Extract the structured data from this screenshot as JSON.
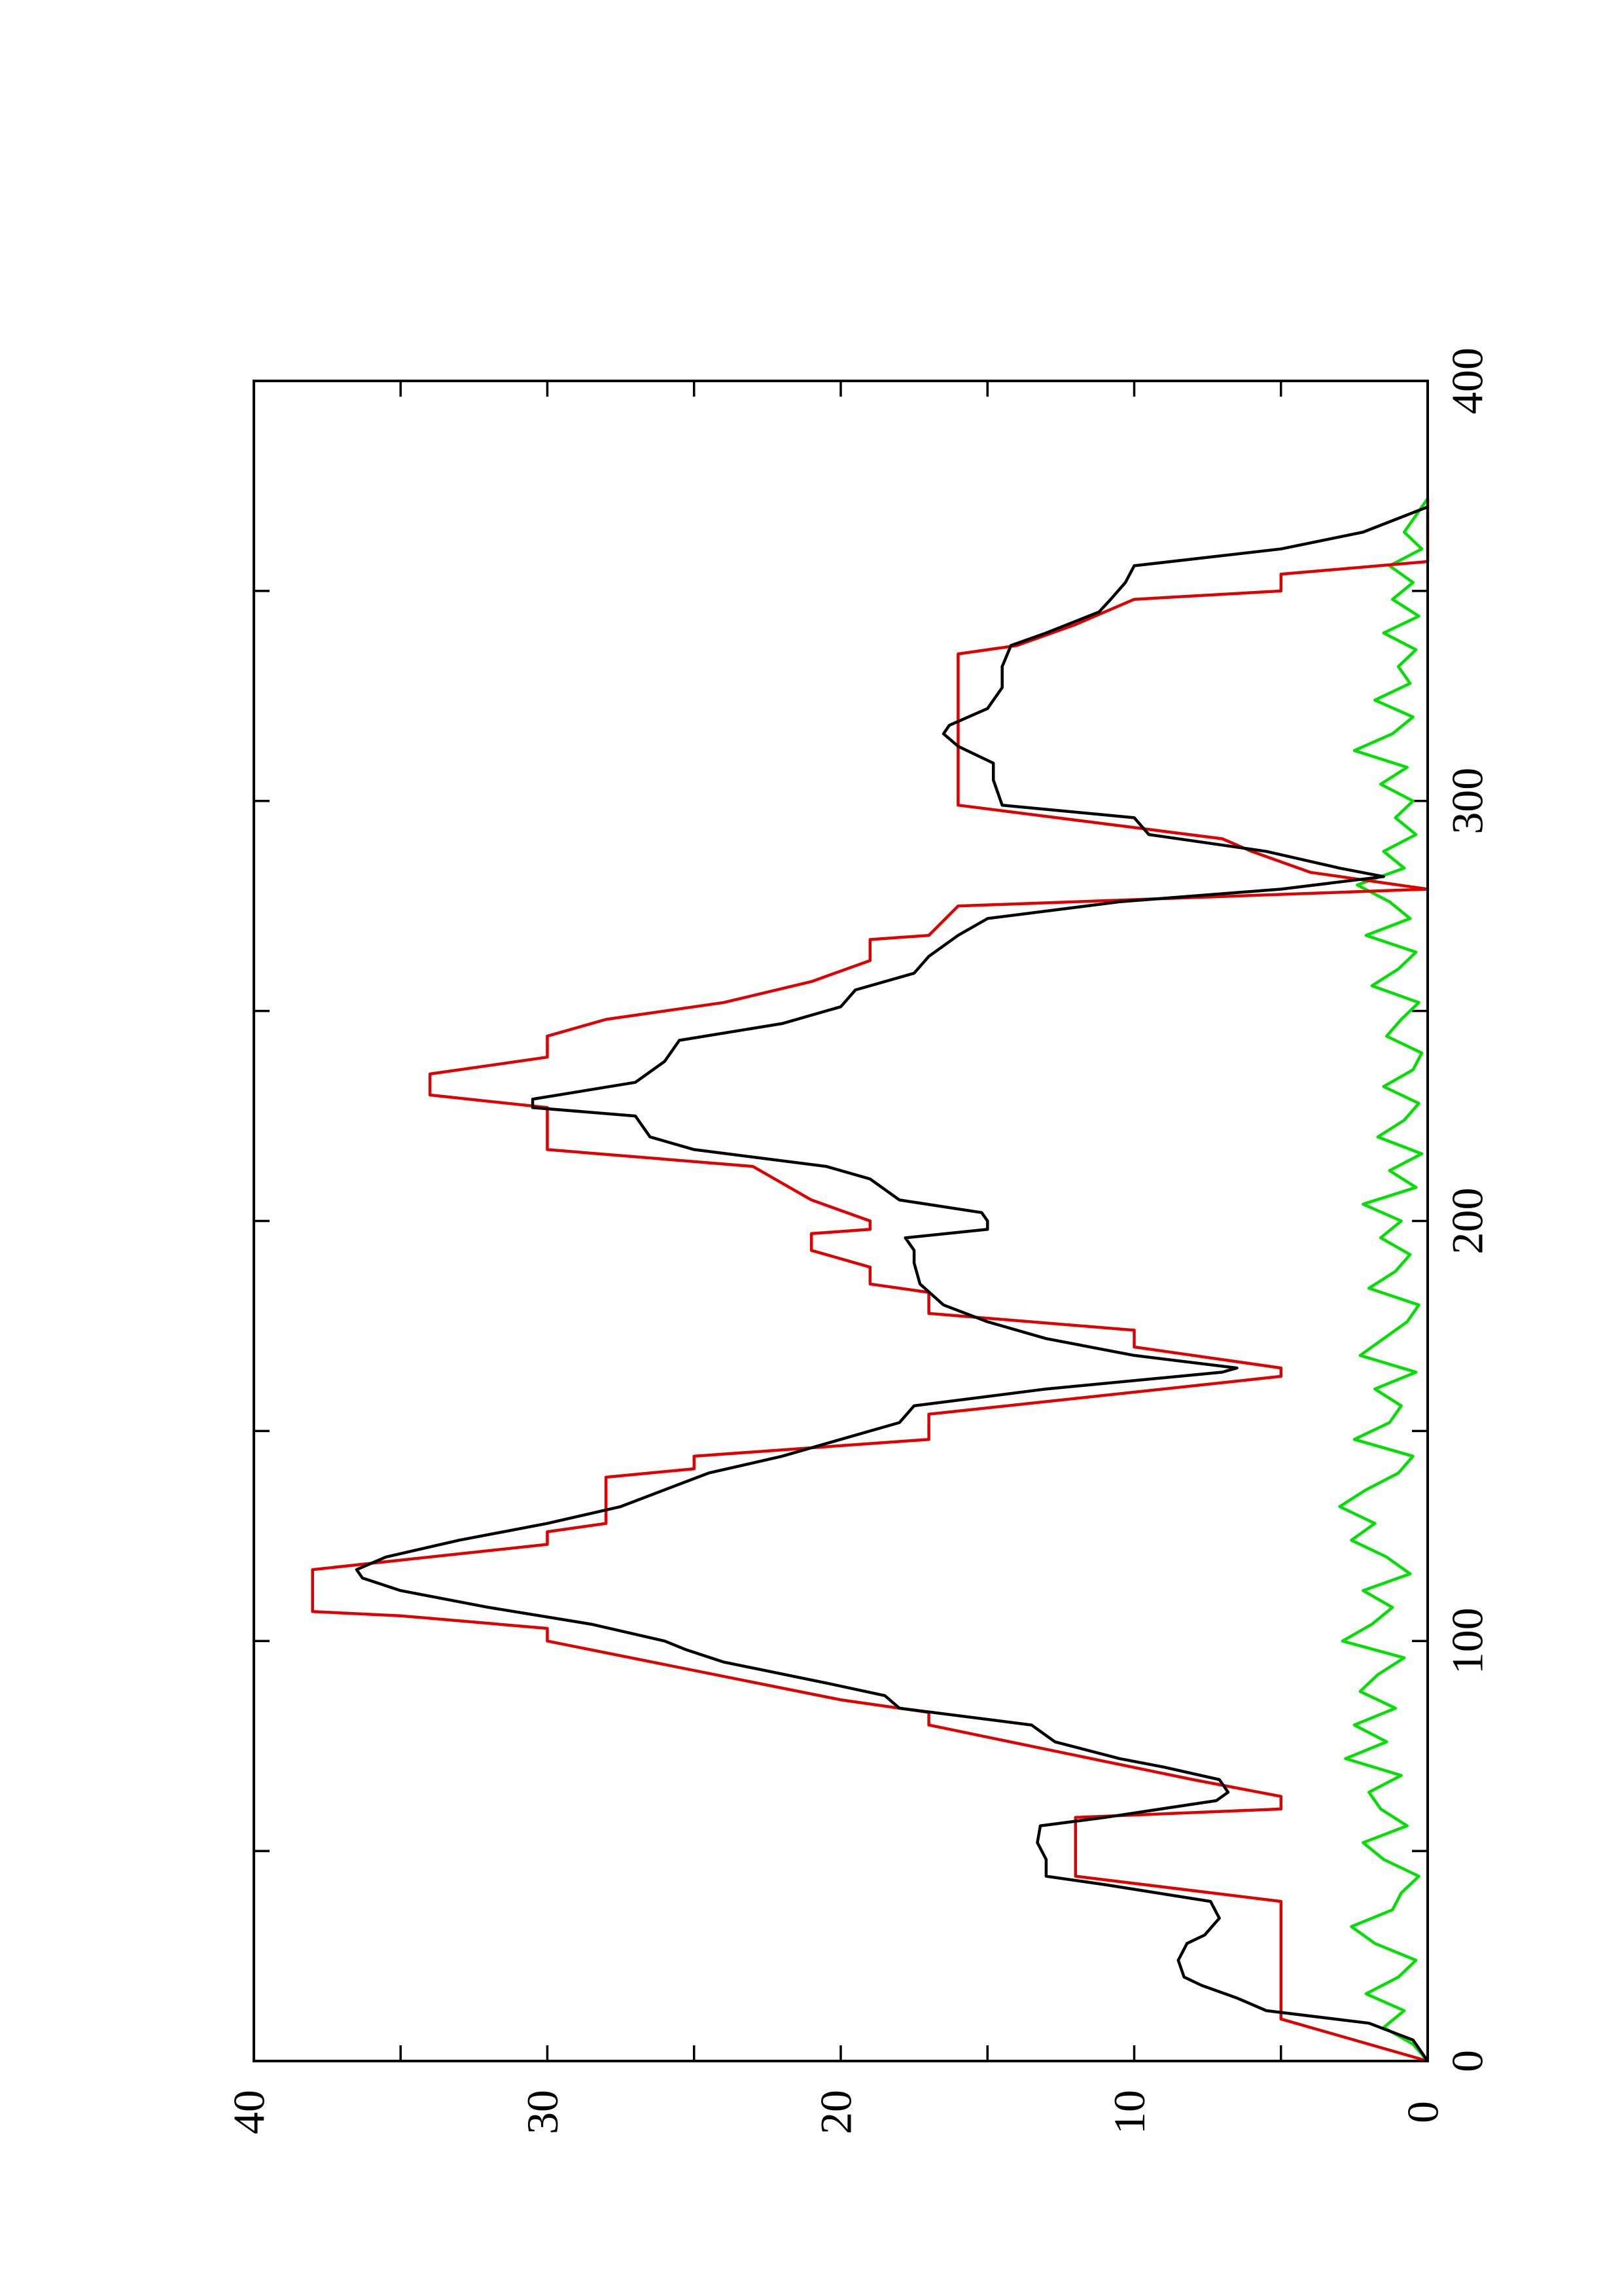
{
  "chart_data": {
    "type": "line",
    "xlim": [
      0,
      400
    ],
    "ylim": [
      0,
      40
    ],
    "xticks": [
      0,
      100,
      200,
      300,
      400
    ],
    "yticks": [
      0,
      10,
      20,
      30,
      40
    ],
    "xminor": [
      50,
      150,
      250,
      350
    ],
    "yminor": [
      5,
      15,
      25,
      35
    ],
    "rotated": true,
    "series": [
      {
        "color": "#00e000",
        "x": [
          0,
          4,
          8,
          12,
          16,
          20,
          24,
          28,
          32,
          36,
          40,
          44,
          48,
          52,
          56,
          60,
          64,
          68,
          72,
          76,
          80,
          84,
          88,
          92,
          96,
          100,
          104,
          108,
          112,
          116,
          120,
          124,
          128,
          132,
          136,
          140,
          144,
          148,
          152,
          156,
          160,
          164,
          168,
          172,
          176,
          180,
          184,
          188,
          192,
          196,
          200,
          204,
          208,
          212,
          216,
          220,
          224,
          228,
          232,
          236,
          240,
          244,
          248,
          252,
          256,
          260,
          264,
          268,
          272,
          276,
          280,
          284,
          288,
          292,
          296,
          300,
          304,
          308,
          312,
          316,
          320,
          324,
          328,
          332,
          336,
          340,
          344,
          348,
          352,
          356,
          360,
          364,
          368,
          372
        ],
        "values": [
          0,
          0.5,
          1.5,
          0.8,
          2.1,
          1.0,
          0.4,
          1.8,
          2.6,
          1.2,
          0.9,
          0.3,
          1.5,
          2.2,
          0.7,
          1.6,
          2.0,
          0.9,
          2.8,
          1.4,
          2.5,
          1.1,
          2.3,
          1.7,
          0.8,
          2.9,
          1.9,
          1.2,
          2.2,
          0.6,
          1.4,
          2.6,
          1.8,
          3.0,
          2.1,
          1.0,
          0.5,
          2.5,
          1.3,
          0.9,
          1.8,
          0.4,
          2.3,
          1.5,
          0.7,
          0.3,
          2.0,
          1.1,
          0.6,
          1.6,
          0.9,
          2.2,
          0.4,
          1.3,
          0.2,
          1.7,
          0.8,
          0.3,
          1.5,
          0.5,
          0.2,
          1.4,
          0.9,
          0.3,
          1.9,
          1.0,
          0.4,
          2.1,
          0.6,
          1.3,
          2.4,
          0.8,
          1.5,
          0.4,
          1.1,
          0.5,
          1.6,
          0.7,
          2.5,
          1.2,
          0.5,
          1.8,
          0.6,
          1.0,
          0.4,
          1.5,
          0.3,
          1.2,
          0.5,
          1.3,
          0.2,
          0.8,
          0.4,
          0
        ]
      },
      {
        "color": "#e00000",
        "x": [
          0,
          10,
          38,
          44,
          58,
          60,
          63,
          67,
          80,
          83,
          86,
          100,
          103,
          106,
          107,
          117,
          123,
          126,
          128,
          139,
          141,
          144,
          148,
          154,
          163,
          165,
          170,
          174,
          178,
          183,
          185,
          189,
          193,
          197,
          198,
          200,
          205,
          213,
          217,
          227,
          230,
          235,
          239,
          244,
          248,
          252,
          257,
          262,
          267,
          268,
          275,
          279,
          283,
          288,
          291,
          299,
          335,
          337,
          342,
          348,
          350,
          354,
          357,
          372
        ],
        "values": [
          0,
          5,
          5,
          12,
          12,
          5,
          5,
          8,
          17,
          17,
          20,
          30,
          30,
          35,
          38,
          38,
          30,
          30,
          28,
          28,
          25,
          25,
          17,
          17,
          5,
          5,
          10,
          10,
          17,
          17,
          19,
          19,
          21,
          21,
          19,
          19,
          21,
          23,
          30,
          30,
          34,
          34,
          30,
          30,
          28,
          24,
          21,
          19,
          19,
          17,
          16,
          0,
          4,
          6,
          7,
          16,
          16,
          14,
          12,
          10,
          5,
          5,
          0,
          0
        ]
      },
      {
        "color": "#000000",
        "x": [
          0,
          5,
          9,
          12,
          15,
          18,
          20,
          24,
          28,
          30,
          34,
          38,
          42,
          44,
          48,
          52,
          56,
          58,
          62,
          64,
          67,
          70,
          72,
          76,
          80,
          84,
          87,
          90,
          95,
          98,
          100,
          104,
          108,
          110,
          112,
          115,
          117,
          120,
          124,
          128,
          132,
          136,
          140,
          144,
          148,
          152,
          156,
          160,
          164,
          165,
          168,
          172,
          176,
          180,
          185,
          190,
          193,
          196,
          198,
          200,
          202,
          205,
          210,
          213,
          217,
          220,
          225,
          227,
          229,
          233,
          238,
          243,
          247,
          251,
          255,
          259,
          263,
          268,
          272,
          276,
          279,
          282,
          284,
          288,
          292,
          296,
          299,
          305,
          309,
          313,
          316,
          318,
          322,
          327,
          332,
          337,
          340,
          345,
          348,
          352,
          356,
          360,
          364,
          370
        ],
        "values": [
          0,
          0.5,
          2,
          5.5,
          6.5,
          7.7,
          8.3,
          8.5,
          8.2,
          7.6,
          7.1,
          7.4,
          11,
          13,
          13,
          13.3,
          13.2,
          11,
          7.2,
          6.8,
          7.1,
          9,
          10.5,
          12.7,
          13.5,
          18,
          18.5,
          20.5,
          24,
          25.3,
          26,
          28.5,
          32,
          33.5,
          35,
          36.3,
          36.5,
          35.5,
          33,
          30,
          27.5,
          26,
          24.5,
          22,
          20,
          18,
          17.5,
          13,
          7,
          6.5,
          10,
          13,
          15,
          16.5,
          17.3,
          17.5,
          17.5,
          17.8,
          15,
          15,
          15.2,
          18,
          19,
          20.5,
          25,
          26.5,
          27,
          30.5,
          30.5,
          27,
          26,
          25.5,
          22,
          20,
          19.5,
          17.5,
          17,
          16,
          15,
          10.5,
          5,
          1.5,
          3,
          5.5,
          9.5,
          10,
          14.5,
          14.8,
          14.8,
          16,
          16.5,
          16.3,
          15,
          14.5,
          14.5,
          14.2,
          13,
          11.2,
          10.8,
          10.3,
          10,
          5,
          2.2,
          0
        ]
      }
    ]
  }
}
